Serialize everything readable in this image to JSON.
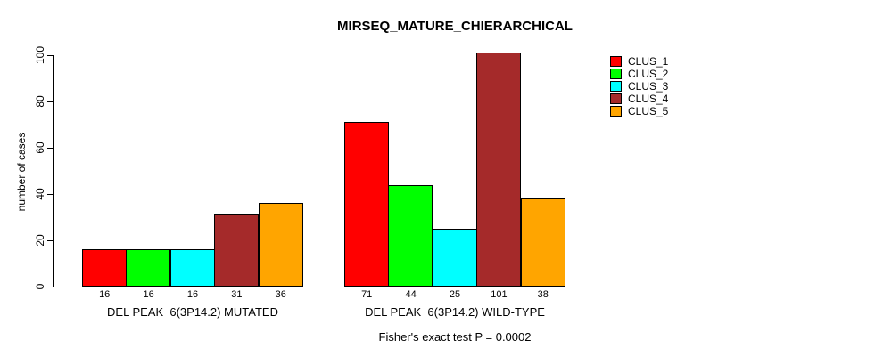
{
  "chart_data": {
    "type": "bar",
    "title": "MIRSEQ_MATURE_CHIERARCHICAL",
    "ylabel": "number of cases",
    "xlabel": "",
    "ylim": [
      0,
      100
    ],
    "yticks": [
      0,
      20,
      40,
      60,
      80,
      100
    ],
    "grid": false,
    "legend_position": "right",
    "categories": [
      "DEL PEAK  6(3P14.2) MUTATED",
      "DEL PEAK  6(3P14.2) WILD-TYPE"
    ],
    "series": [
      {
        "name": "CLUS_1",
        "color": "#FF0000",
        "values": [
          16,
          71
        ]
      },
      {
        "name": "CLUS_2",
        "color": "#00FF00",
        "values": [
          16,
          44
        ]
      },
      {
        "name": "CLUS_3",
        "color": "#00FFFF",
        "values": [
          16,
          25
        ]
      },
      {
        "name": "CLUS_4",
        "color": "#A52A2A",
        "values": [
          31,
          101
        ]
      },
      {
        "name": "CLUS_5",
        "color": "#FFA500",
        "values": [
          36,
          38
        ]
      }
    ],
    "bar_value_labels": [
      [
        "16",
        "16",
        "16",
        "31",
        "36"
      ],
      [
        "71",
        "44",
        "25",
        "101",
        "38"
      ]
    ],
    "annotation": "Fisher's exact test P = 0.0002",
    "bar_border_color": "#000000",
    "text_color": "#000000",
    "background_color": "#FFFFFF"
  }
}
